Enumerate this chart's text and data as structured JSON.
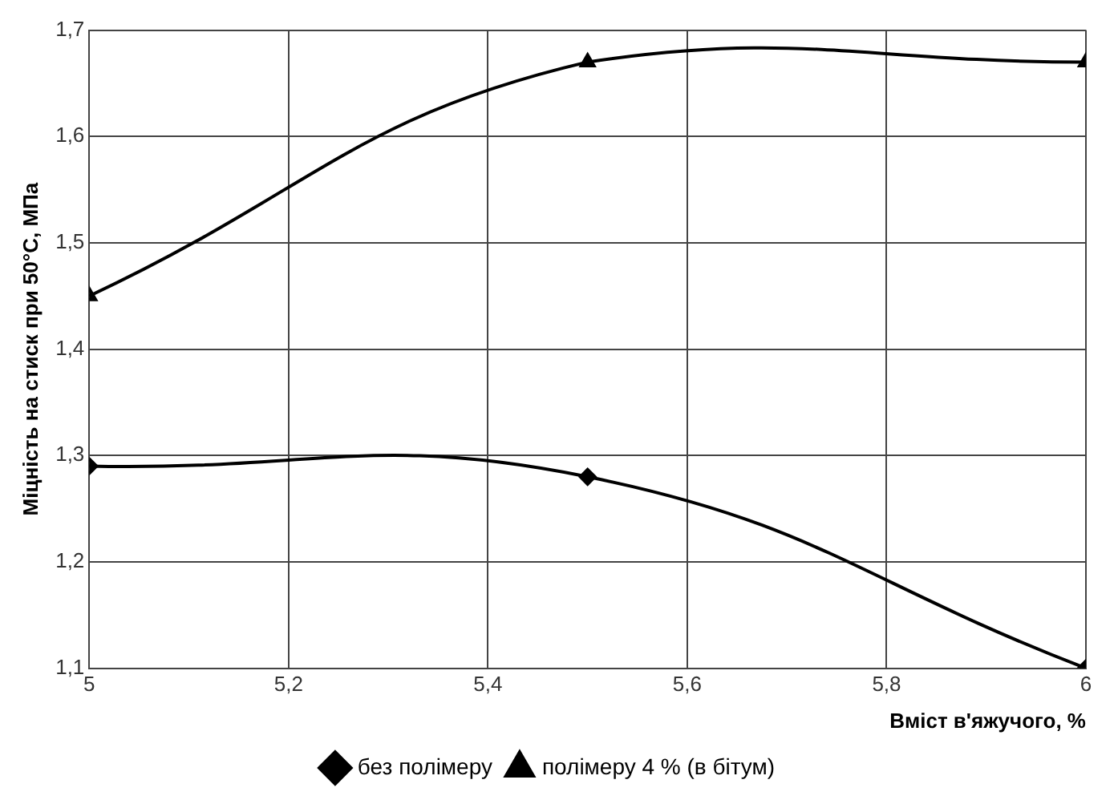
{
  "chart_data": {
    "type": "line",
    "xlabel": "Вміст в'яжучого, %",
    "ylabel": "Міцність на стиск при 50°С, МПа",
    "x": [
      5,
      5.5,
      6
    ],
    "series": [
      {
        "name": "без полімеру",
        "color": "#000000",
        "marker": "diamond",
        "values": [
          1.29,
          1.28,
          1.1
        ]
      },
      {
        "name": "полімеру 4 % (в бітум)",
        "color": "#000000",
        "marker": "triangle",
        "values": [
          1.45,
          1.67,
          1.67
        ]
      }
    ],
    "xlim": [
      5,
      6
    ],
    "xticks": [
      5,
      {
        "value": 5.2,
        "label": "5,2"
      },
      {
        "value": 5.4,
        "label": "5,4"
      },
      {
        "value": 5.6,
        "label": "5,6"
      },
      {
        "value": 5.8,
        "label": "5,8"
      },
      6
    ],
    "ylim": [
      1.1,
      1.7
    ],
    "yticks": [
      {
        "value": 1.1,
        "label": "1,1"
      },
      {
        "value": 1.2,
        "label": "1,2"
      },
      {
        "value": 1.3,
        "label": "1,3"
      },
      {
        "value": 1.4,
        "label": "1,4"
      },
      {
        "value": 1.5,
        "label": "1,5"
      },
      {
        "value": 1.6,
        "label": "1,6"
      },
      {
        "value": 1.7,
        "label": "1,7"
      }
    ],
    "grid": true,
    "legend": "bottom"
  }
}
